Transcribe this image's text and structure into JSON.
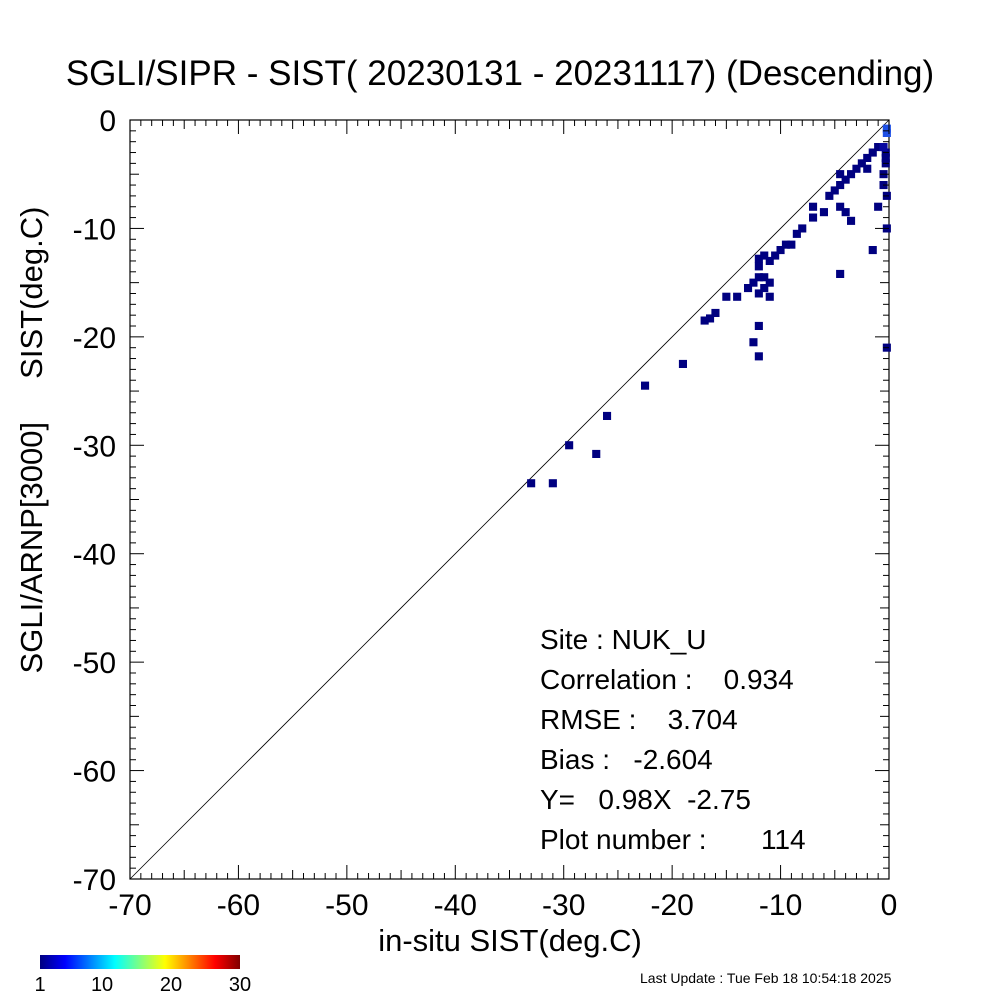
{
  "title": "SGLI/SIPR - SIST( 20230131 - 20231117) (Descending)",
  "stats": {
    "site": "Site : NUK_U",
    "correlation": "Correlation :    0.934",
    "rmse": "RMSE :    3.704",
    "bias": "Bias :   -2.604",
    "fit": "Y=   0.98X  -2.75",
    "plot_number": "Plot number :       114"
  },
  "footer": "Last Update : Tue Feb 18 10:54:18 2025",
  "colorbar": {
    "labels": [
      "1",
      "10",
      "20",
      "30"
    ],
    "values": [
      1,
      10,
      20,
      30
    ],
    "colors": [
      "#000080",
      "#0000ff",
      "#0080ff",
      "#00ffff",
      "#80ff80",
      "#ffff00",
      "#ff8000",
      "#ff0000",
      "#800000"
    ]
  },
  "chart_data": {
    "type": "heatmap",
    "title": "SGLI/SIPR - SIST( 20230131 - 20231117) (Descending)",
    "xlabel": "in-situ SIST(deg.C)",
    "ylabel": "SGLI/ARNP[3000]     SIST(deg.C)",
    "xlim": [
      -70,
      0
    ],
    "ylim": [
      -70,
      0
    ],
    "xticks": [
      -70,
      -60,
      -50,
      -40,
      -30,
      -20,
      -10,
      0
    ],
    "yticks": [
      -70,
      -60,
      -50,
      -40,
      -30,
      -20,
      -10,
      0
    ],
    "reference_line": "y = x",
    "bin_size": 1,
    "density_colors": [
      "#000080",
      "#0a0aa0",
      "#1e50e6"
    ],
    "cells": [
      [
        -33,
        -33.5,
        1
      ],
      [
        -31,
        -33.5,
        1
      ],
      [
        -29.5,
        -30,
        1
      ],
      [
        -27,
        -30.8,
        1
      ],
      [
        -26,
        -27.3,
        1
      ],
      [
        -22.5,
        -24.5,
        1
      ],
      [
        -19,
        -22.5,
        1
      ],
      [
        -16.5,
        -18.3,
        1
      ],
      [
        -16,
        -17.8,
        1
      ],
      [
        -17,
        -18.5,
        1
      ],
      [
        -15,
        -16.3,
        1
      ],
      [
        -14,
        -16.3,
        1
      ],
      [
        -12,
        -19,
        1
      ],
      [
        -12.5,
        -20.5,
        1
      ],
      [
        -12,
        -21.8,
        1
      ],
      [
        -13,
        -15.5,
        1
      ],
      [
        -12.5,
        -15,
        1
      ],
      [
        -12,
        -14.5,
        1
      ],
      [
        -12,
        -13.5,
        1
      ],
      [
        -12,
        -12.8,
        1
      ],
      [
        -11.5,
        -14.5,
        1
      ],
      [
        -11,
        -13,
        1
      ],
      [
        -11.5,
        -12.5,
        1
      ],
      [
        -10.5,
        -12.5,
        1
      ],
      [
        -10,
        -12,
        1
      ],
      [
        -9.5,
        -11.5,
        1
      ],
      [
        -9,
        -11.5,
        1
      ],
      [
        -8.5,
        -10.5,
        1
      ],
      [
        -8,
        -10,
        1
      ],
      [
        -7,
        -9,
        1
      ],
      [
        -11,
        -16.3,
        1
      ],
      [
        -12,
        -16,
        1
      ],
      [
        -11.5,
        -15.5,
        1
      ],
      [
        -11,
        -15,
        1
      ],
      [
        -7,
        -8,
        1
      ],
      [
        -6,
        -8.5,
        1
      ],
      [
        -5.5,
        -7,
        1
      ],
      [
        -5,
        -6.5,
        1
      ],
      [
        -4.5,
        -6,
        1
      ],
      [
        -4,
        -5.5,
        1
      ],
      [
        -4.5,
        -5,
        1
      ],
      [
        -4,
        -8.5,
        1
      ],
      [
        -4.5,
        -8,
        1
      ],
      [
        -3.5,
        -9.3,
        1
      ],
      [
        -3.5,
        -5,
        1
      ],
      [
        -3,
        -4.5,
        1
      ],
      [
        -2.5,
        -4,
        1
      ],
      [
        -2,
        -3.5,
        1
      ],
      [
        -1.5,
        -3,
        1
      ],
      [
        -1,
        -2.5,
        1
      ],
      [
        -2,
        -4.5,
        1
      ],
      [
        -1.5,
        -12,
        1
      ],
      [
        -4.5,
        -14.2,
        1
      ],
      [
        -1,
        -8,
        1
      ],
      [
        -0.5,
        -5,
        1
      ],
      [
        -0.5,
        -6,
        1
      ],
      [
        -0.2,
        -7,
        1
      ],
      [
        -0.2,
        -10,
        1
      ],
      [
        -0.2,
        -21,
        1
      ],
      [
        -0.3,
        -3,
        1
      ],
      [
        -0.3,
        -3.5,
        1
      ],
      [
        -0.3,
        -4,
        1
      ],
      [
        -0.5,
        -2.5,
        2
      ],
      [
        -0.2,
        -1.2,
        3
      ],
      [
        -0.2,
        -0.8,
        3
      ]
    ]
  }
}
